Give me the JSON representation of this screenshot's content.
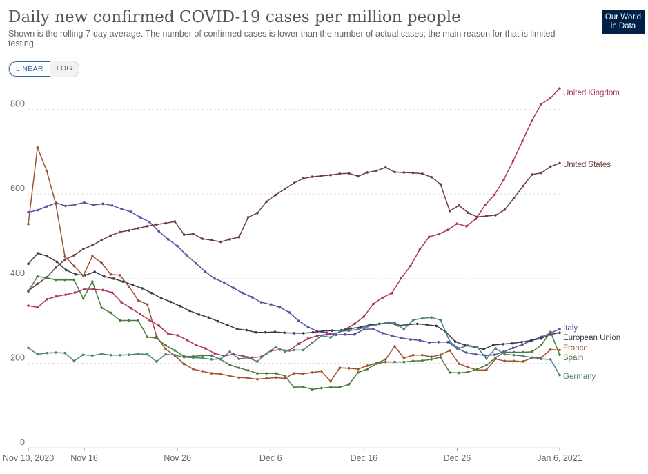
{
  "header": {
    "title": "Daily new confirmed COVID-19 cases per million people",
    "subtitle": "Shown is the rolling 7-day average. The number of confirmed cases is lower than the number of actual cases; the main reason for that is limited testing.",
    "logo_line1": "Our World",
    "logo_line2": "in Data"
  },
  "controls": {
    "linear_label": "LINEAR",
    "log_label": "LOG",
    "active": "linear"
  },
  "chart_data": {
    "type": "line",
    "title": "Daily new confirmed COVID-19 cases per million people",
    "xlabel": "",
    "ylabel": "",
    "ylim": [
      0,
      850
    ],
    "yticks": [
      0,
      200,
      400,
      600,
      800
    ],
    "x_start": "Nov 10, 2020",
    "x_tick_labels": [
      {
        "day": 0,
        "label": "Nov 10, 2020"
      },
      {
        "day": 6,
        "label": "Nov 16"
      },
      {
        "day": 16,
        "label": "Nov 26"
      },
      {
        "day": 26,
        "label": "Dec 6"
      },
      {
        "day": 36,
        "label": "Dec 16"
      },
      {
        "day": 46,
        "label": "Dec 26"
      },
      {
        "day": 57,
        "label": "Jan 6, 2021"
      }
    ],
    "grid": "horizontal-dashed",
    "legend": "end-of-line labels",
    "series": [
      {
        "name": "United Kingdom",
        "color": "#b13365",
        "values": [
          336,
          332,
          351,
          358,
          362,
          367,
          375,
          375,
          373,
          367,
          344,
          330,
          316,
          302,
          289,
          270,
          266,
          255,
          243,
          235,
          223,
          217,
          221,
          217,
          213,
          215,
          229,
          232,
          230,
          246,
          258,
          265,
          268,
          270,
          280,
          293,
          310,
          340,
          355,
          366,
          401,
          430,
          469,
          499,
          505,
          515,
          530,
          524,
          541,
          574,
          598,
          634,
          678,
          725,
          773,
          812,
          827,
          850
        ]
      },
      {
        "name": "United States",
        "color": "#6d3e3e",
        "values": [
          371,
          388,
          403,
          426,
          445,
          455,
          470,
          479,
          491,
          502,
          510,
          514,
          519,
          524,
          528,
          531,
          535,
          504,
          506,
          494,
          491,
          487,
          493,
          498,
          545,
          555,
          582,
          598,
          612,
          626,
          637,
          641,
          643,
          645,
          648,
          649,
          642,
          651,
          655,
          663,
          652,
          651,
          650,
          648,
          640,
          623,
          560,
          573,
          556,
          546,
          548,
          550,
          563,
          590,
          619,
          646,
          650,
          665,
          673
        ]
      },
      {
        "name": "Italy",
        "color": "#5d4e9e",
        "values": [
          557,
          562,
          571,
          579,
          572,
          575,
          580,
          574,
          577,
          573,
          565,
          558,
          545,
          534,
          512,
          493,
          477,
          455,
          436,
          416,
          400,
          391,
          378,
          366,
          356,
          344,
          339,
          332,
          320,
          300,
          286,
          275,
          272,
          267,
          268,
          268,
          280,
          281,
          271,
          265,
          260,
          256,
          254,
          249,
          250,
          250,
          235,
          225,
          221,
          218,
          220,
          227,
          236,
          244,
          254,
          262,
          271,
          281
        ]
      },
      {
        "name": "European Union",
        "color": "#3b3b4e",
        "values": [
          435,
          460,
          453,
          440,
          420,
          410,
          408,
          416,
          405,
          400,
          393,
          385,
          377,
          366,
          354,
          345,
          335,
          324,
          315,
          308,
          299,
          290,
          281,
          278,
          273,
          273,
          274,
          272,
          271,
          271,
          273,
          276,
          277,
          278,
          282,
          285,
          291,
          293,
          296,
          289,
          291,
          293,
          291,
          288,
          274,
          251,
          243,
          238,
          233,
          243,
          245,
          247,
          250,
          254,
          258,
          268,
          272
        ]
      },
      {
        "name": "France",
        "color": "#a0522d",
        "values": [
          529,
          710,
          655,
          577,
          452,
          430,
          407,
          453,
          437,
          410,
          408,
          381,
          349,
          339,
          263,
          233,
          218,
          198,
          186,
          181,
          176,
          174,
          170,
          166,
          165,
          162,
          164,
          166,
          164,
          176,
          175,
          178,
          181,
          157,
          189,
          188,
          186,
          194,
          200,
          209,
          240,
          212,
          219,
          219,
          215,
          220,
          230,
          199,
          190,
          184,
          184,
          210,
          205,
          205,
          204,
          213,
          213,
          232,
          231
        ]
      },
      {
        "name": "Spain",
        "color": "#4a7c3a",
        "values": [
          370,
          405,
          402,
          397,
          397,
          397,
          353,
          393,
          331,
          319,
          301,
          301,
          301,
          262,
          259,
          242,
          230,
          216,
          216,
          218,
          218,
          209,
          196,
          189,
          183,
          176,
          176,
          176,
          170,
          143,
          144,
          138,
          141,
          143,
          143,
          150,
          178,
          186,
          199,
          203,
          203,
          203,
          205,
          206,
          209,
          214,
          178,
          177,
          179,
          186,
          195,
          213,
          226,
          226,
          226,
          227,
          243,
          274,
          220
        ]
      },
      {
        "name": "Germany",
        "color": "#4d8080",
        "values": [
          236,
          221,
          224,
          225,
          224,
          205,
          220,
          218,
          222,
          219,
          219,
          220,
          222,
          221,
          204,
          221,
          219,
          214,
          213,
          212,
          209,
          210,
          227,
          210,
          213,
          204,
          223,
          238,
          228,
          231,
          231,
          248,
          265,
          261,
          275,
          277,
          280,
          287,
          291,
          295,
          296,
          280,
          302,
          306,
          308,
          302,
          251,
          235,
          242,
          238,
          211,
          235,
          221,
          219,
          217,
          213,
          210,
          209,
          172
        ]
      }
    ]
  }
}
